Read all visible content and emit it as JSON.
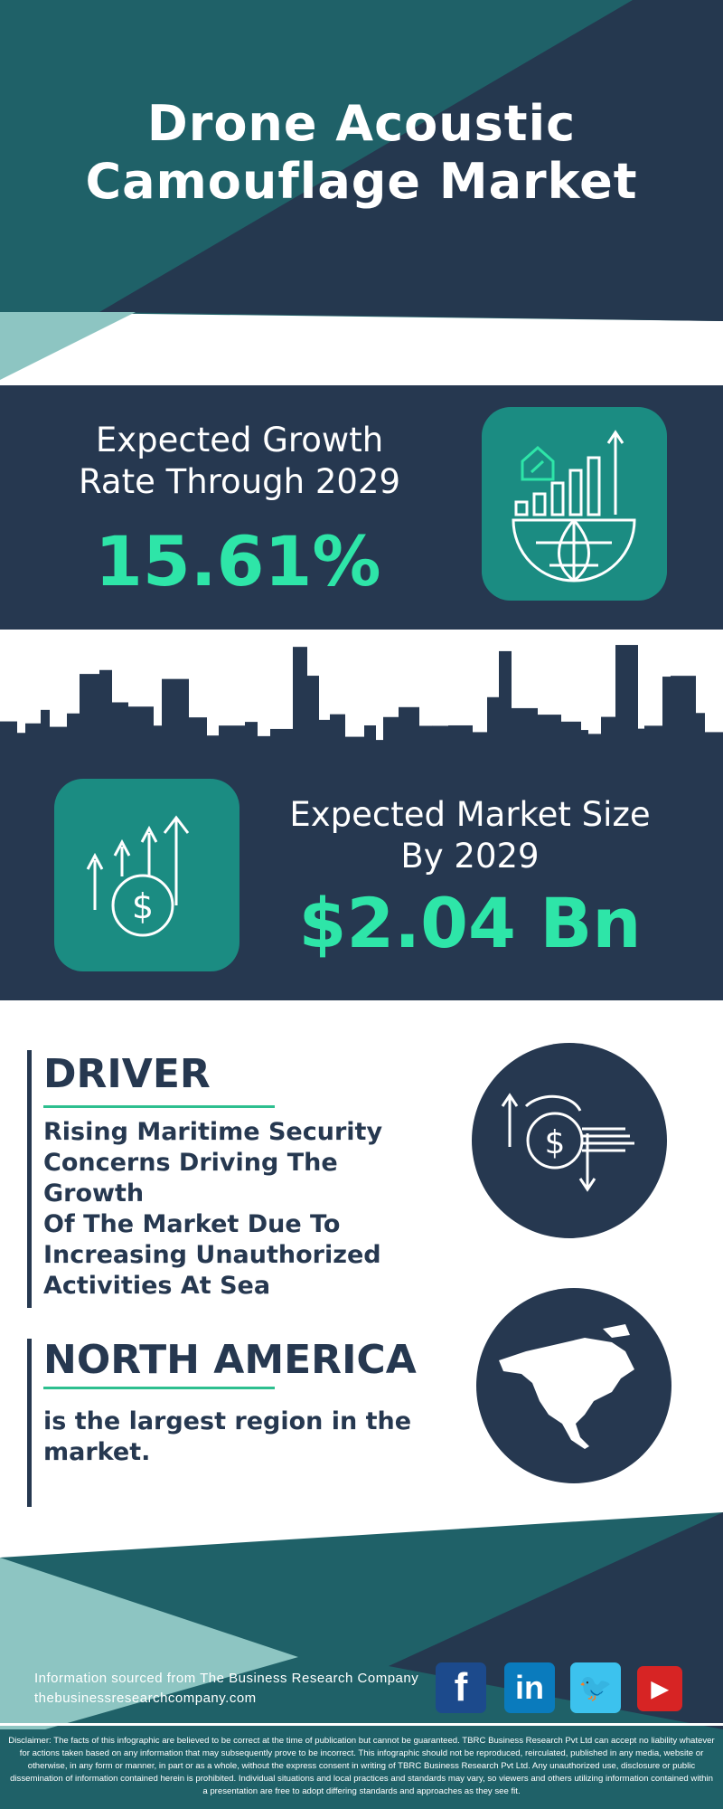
{
  "header": {
    "title_line1": "Drone Acoustic",
    "title_line2": "Camouflage Market"
  },
  "growth": {
    "label_line1": "Expected Growth",
    "label_line2": "Rate Through 2029",
    "value": "15.61%",
    "icon": "growth-chart-globe-icon"
  },
  "market": {
    "label_line1": "Expected Market Size",
    "label_line2": "By 2029",
    "value": "$2.04 Bn",
    "icon": "dollar-growth-arrows-icon"
  },
  "driver": {
    "heading": "DRIVER",
    "lines": [
      "Rising Maritime Security",
      "Concerns Driving The Growth",
      "Of The Market Due To",
      "Increasing Unauthorized",
      "Activities At Sea"
    ],
    "icon": "dollar-exchange-icon"
  },
  "region": {
    "heading": "NORTH AMERICA",
    "lines": [
      "is the largest region in the",
      "market."
    ],
    "icon": "north-america-map-icon"
  },
  "footer": {
    "source": "Information sourced from The Business Research Company",
    "website": "thebusinessresearchcompany.com",
    "social": [
      "facebook",
      "linkedin",
      "twitter",
      "youtube"
    ],
    "disclaimer": "Disclaimer: The facts of this infographic are believed to be correct at the time of publication but cannot be guaranteed. TBRC Business Research Pvt Ltd can accept no liability whatever for actions taken based on any information that may subsequently prove to be incorrect. This infographic should not be reproduced, reirculated, published in any media, website or otherwise, in any form or manner, in part or as a whole, without the express consent in writing of TBRC Business Research Pvt Ltd. Any unauthorized use, disclosure or public dissemination of information contained herein is prohibited. Individual situations and local practices and standards may vary, so viewers and others utilizing information contained within a presentation are free to adopt differing standards and approaches as they see fit."
  },
  "colors": {
    "navy": "#263850",
    "teal": "#1f6168",
    "accent": "#2ee5a8",
    "icon_bg": "#1b8c82",
    "light_teal": "#8dc5c2"
  }
}
